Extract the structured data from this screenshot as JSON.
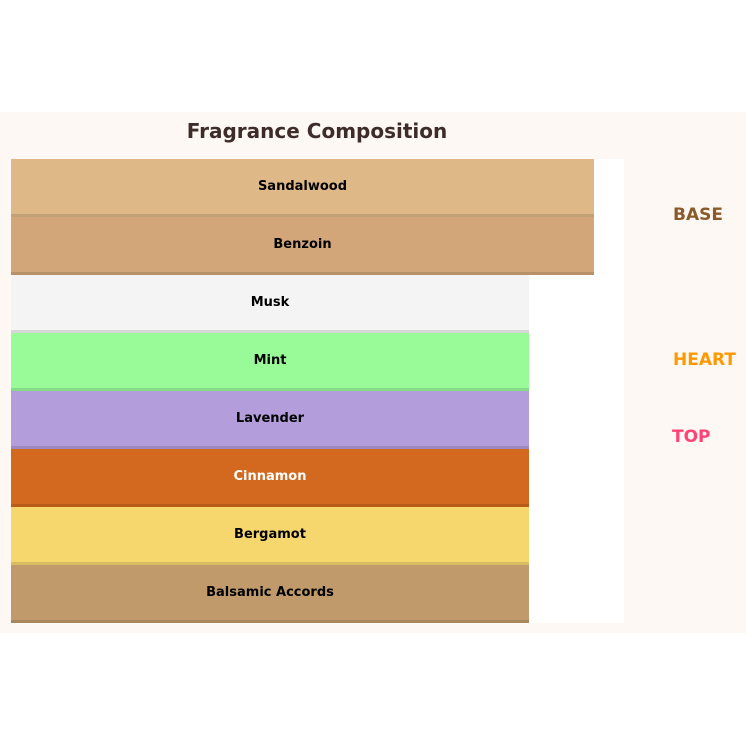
{
  "title": "Fragrance Composition",
  "layers": [
    {
      "name": "Sandalwood",
      "color": "#deb887",
      "text_color": "#000000"
    },
    {
      "name": "Benzoin",
      "color": "#d2a679",
      "text_color": "#000000"
    },
    {
      "name": "Musk",
      "color": "#f4f4f4",
      "text_color": "#000000"
    },
    {
      "name": "Mint",
      "color": "#98fb98",
      "text_color": "#000000"
    },
    {
      "name": "Lavender",
      "color": "#b39ddb",
      "text_color": "#000000"
    },
    {
      "name": "Cinnamon",
      "color": "#d2691e",
      "text_color": "#ffffff"
    },
    {
      "name": "Bergamot",
      "color": "#f5d76e",
      "text_color": "#000000"
    },
    {
      "name": "Balsamic Accords",
      "color": "#c19a6b",
      "text_color": "#000000"
    }
  ],
  "tiers": {
    "base": {
      "label": "BASE",
      "color": "#8b5a2b"
    },
    "heart": {
      "label": "HEART",
      "color": "#ff9900"
    },
    "top": {
      "label": "TOP",
      "color": "#ff4477"
    }
  }
}
